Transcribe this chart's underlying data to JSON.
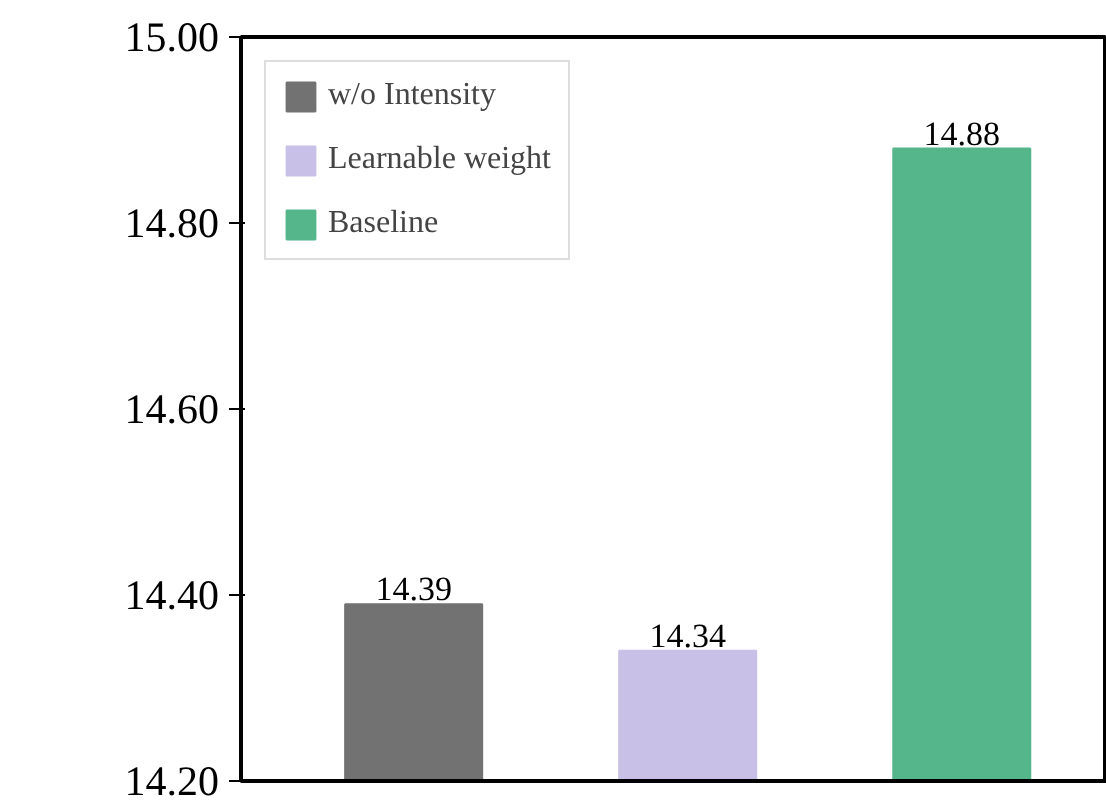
{
  "chart_data": {
    "type": "bar",
    "categories": [
      null,
      null,
      null
    ],
    "series": [
      {
        "name": "w/o Intensity",
        "color": "#727272",
        "values": [
          14.39,
          null,
          null
        ]
      },
      {
        "name": "Learnable weight",
        "color": "#c8c0e6",
        "values": [
          null,
          14.34,
          null
        ]
      },
      {
        "name": "Baseline",
        "color": "#55b58b",
        "values": [
          null,
          null,
          14.88
        ]
      }
    ],
    "ylim": [
      14.2,
      15.0
    ],
    "yticks": [
      {
        "value": 14.2,
        "label": "14.20"
      },
      {
        "value": 14.4,
        "label": "14.40"
      },
      {
        "value": 14.6,
        "label": "14.60"
      },
      {
        "value": 14.8,
        "label": "14.80"
      },
      {
        "value": 15.0,
        "label": "15.00"
      }
    ],
    "data_labels": true,
    "legend": "top left",
    "grid": false,
    "tick_labels": "y"
  }
}
